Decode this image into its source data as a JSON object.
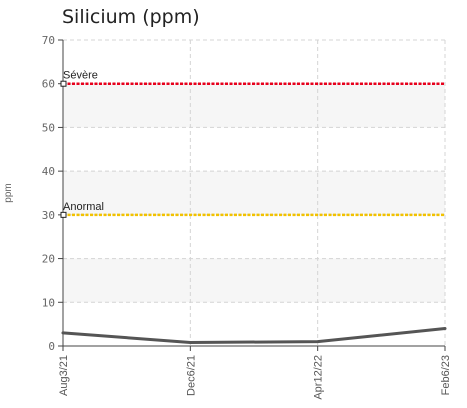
{
  "title": "Silicium (ppm)",
  "chart_data": {
    "type": "line",
    "title": "Silicium (ppm)",
    "xlabel": "",
    "ylabel": "ppm",
    "ylim": [
      0,
      70
    ],
    "yticks": [
      0,
      10,
      20,
      30,
      40,
      50,
      60,
      70
    ],
    "categories": [
      "Aug3/21",
      "Dec6/21",
      "Apr12/22",
      "Feb6/23"
    ],
    "series": [
      {
        "values": [
          3,
          0.8,
          1,
          4
        ],
        "color": "#555555"
      }
    ],
    "thresholds": [
      {
        "label": "Sévère",
        "value": 60,
        "color": "#e8001c"
      },
      {
        "label": "Anormal",
        "value": 30,
        "color": "#f2c200"
      }
    ],
    "grid": true
  }
}
